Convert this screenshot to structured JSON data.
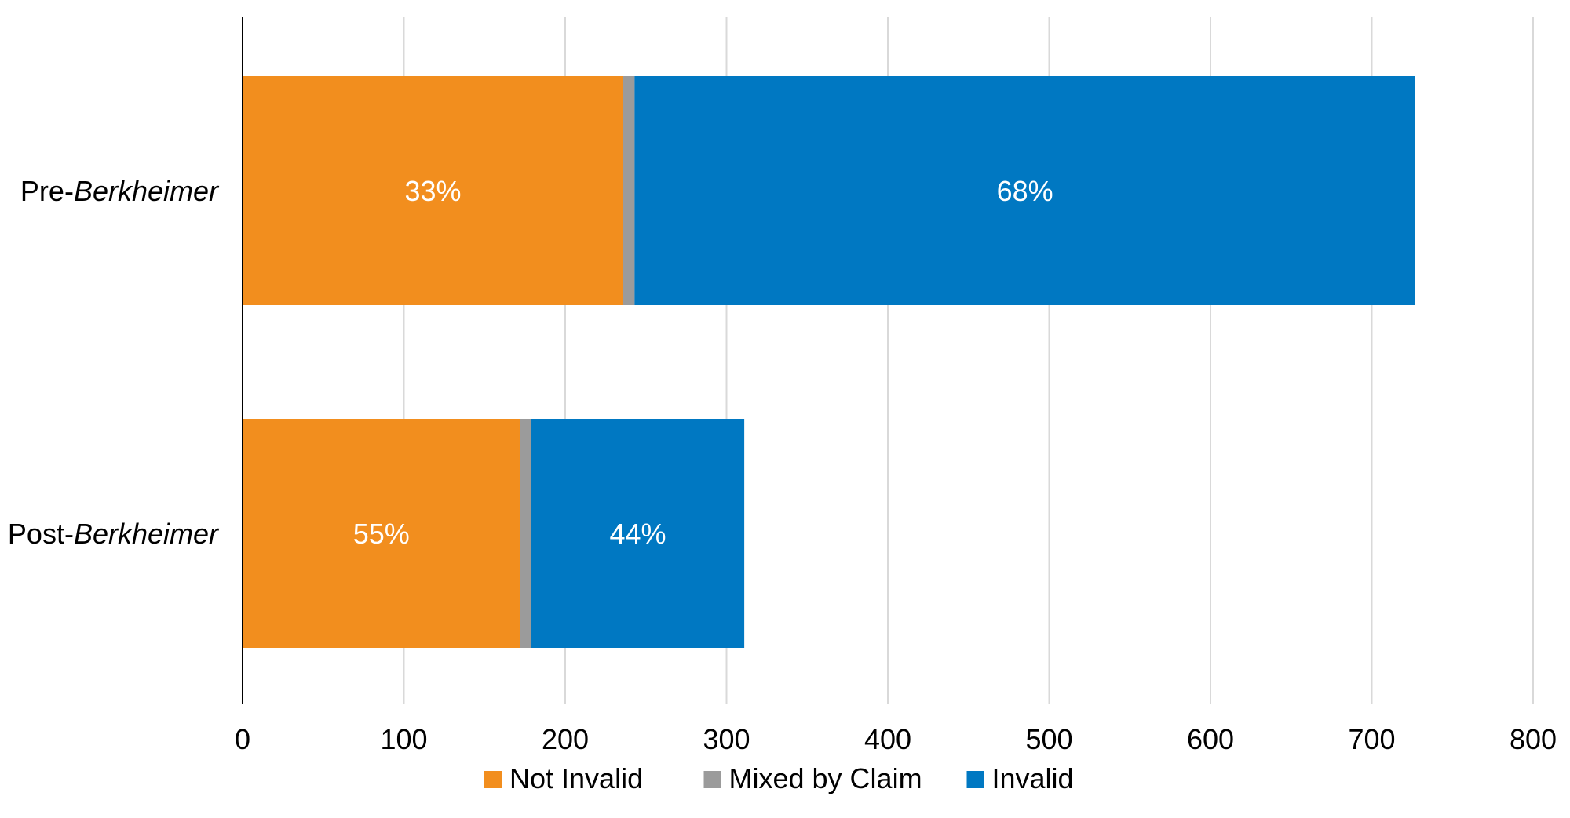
{
  "chart_data": {
    "type": "bar",
    "orientation": "horizontal",
    "stacked": true,
    "categories": [
      {
        "prefix": "Pre-",
        "emphasis": "Berkheimer"
      },
      {
        "prefix": "Post-",
        "emphasis": "Berkheimer"
      }
    ],
    "series": [
      {
        "name": "Not Invalid",
        "color": "#f28e1e",
        "values": [
          236,
          172
        ],
        "labels": [
          "33%",
          "55%"
        ]
      },
      {
        "name": "Mixed by Claim",
        "color": "#9b9b9b",
        "values": [
          7,
          7
        ],
        "labels": [
          "",
          ""
        ]
      },
      {
        "name": "Invalid",
        "color": "#0078c2",
        "values": [
          484,
          132
        ],
        "labels": [
          "68%",
          "44%"
        ]
      }
    ],
    "x_ticks": [
      "0",
      "100",
      "200",
      "300",
      "400",
      "500",
      "600",
      "700",
      "800"
    ],
    "xlim": [
      0,
      800
    ],
    "grid": "vertical",
    "legend_position": "bottom"
  }
}
